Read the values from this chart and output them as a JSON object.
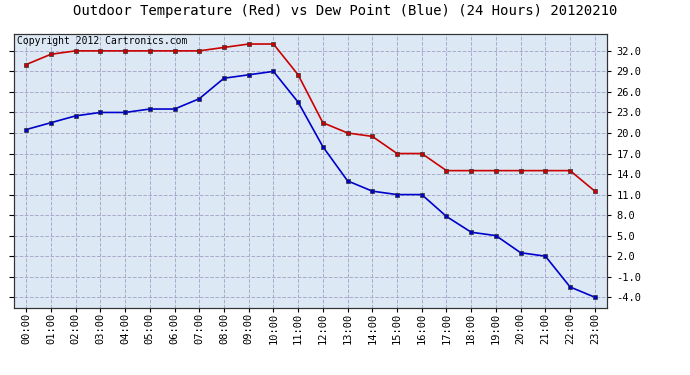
{
  "title": "Outdoor Temperature (Red) vs Dew Point (Blue) (24 Hours) 20120210",
  "copyright_text": "Copyright 2012 Cartronics.com",
  "hours": [
    "00:00",
    "01:00",
    "02:00",
    "03:00",
    "04:00",
    "05:00",
    "06:00",
    "07:00",
    "08:00",
    "09:00",
    "10:00",
    "11:00",
    "12:00",
    "13:00",
    "14:00",
    "15:00",
    "16:00",
    "17:00",
    "18:00",
    "19:00",
    "20:00",
    "21:00",
    "22:00",
    "23:00"
  ],
  "temp_red": [
    30.0,
    31.5,
    32.0,
    32.0,
    32.0,
    32.0,
    32.0,
    32.0,
    32.5,
    33.0,
    33.0,
    28.5,
    21.5,
    20.0,
    19.5,
    17.0,
    17.0,
    14.5,
    14.5,
    14.5,
    14.5,
    14.5,
    14.5,
    11.5
  ],
  "dew_blue": [
    20.5,
    21.5,
    22.5,
    23.0,
    23.0,
    23.5,
    23.5,
    25.0,
    28.0,
    28.5,
    29.0,
    24.5,
    18.0,
    13.0,
    11.5,
    11.0,
    11.0,
    7.8,
    5.5,
    5.0,
    2.5,
    2.0,
    -2.5,
    -4.0
  ],
  "ylim": [
    -5.5,
    34.5
  ],
  "yticks": [
    -4.0,
    -1.0,
    2.0,
    5.0,
    8.0,
    11.0,
    14.0,
    17.0,
    20.0,
    23.0,
    26.0,
    29.0,
    32.0
  ],
  "bg_color": "#ffffff",
  "plot_bg_color": "#dce9f5",
  "grid_color": "#aaaacc",
  "red_color": "#cc0000",
  "blue_color": "#0000cc",
  "title_fontsize": 10,
  "copyright_fontsize": 7,
  "tick_fontsize": 7.5,
  "xlabel_rotation": 90
}
